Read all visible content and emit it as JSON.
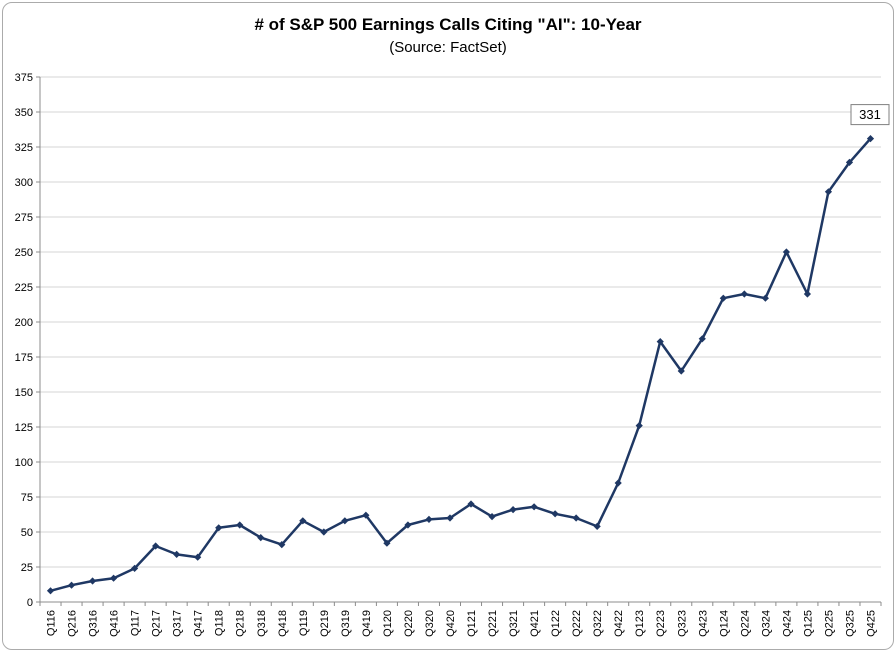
{
  "chart_data": {
    "type": "line",
    "title": "# of S&P 500 Earnings Calls Citing \"AI\": 10-Year",
    "subtitle": "(Source: FactSet)",
    "xlabel": "",
    "ylabel": "",
    "ylim": [
      0,
      375
    ],
    "ytick_step": 25,
    "grid": true,
    "legend": "none",
    "categories": [
      "Q116",
      "Q216",
      "Q316",
      "Q416",
      "Q117",
      "Q217",
      "Q317",
      "Q417",
      "Q118",
      "Q218",
      "Q318",
      "Q418",
      "Q119",
      "Q219",
      "Q319",
      "Q419",
      "Q120",
      "Q220",
      "Q320",
      "Q420",
      "Q121",
      "Q221",
      "Q321",
      "Q421",
      "Q122",
      "Q222",
      "Q322",
      "Q422",
      "Q123",
      "Q223",
      "Q323",
      "Q423",
      "Q124",
      "Q224",
      "Q324",
      "Q424",
      "Q125",
      "Q225",
      "Q325",
      "Q425"
    ],
    "series": [
      {
        "name": "# of S&P 500 Earnings Calls Citing AI",
        "values": [
          8,
          12,
          15,
          17,
          24,
          40,
          34,
          32,
          53,
          55,
          46,
          41,
          58,
          50,
          58,
          62,
          42,
          55,
          59,
          60,
          70,
          61,
          66,
          68,
          63,
          60,
          54,
          85,
          126,
          186,
          165,
          188,
          217,
          220,
          217,
          250,
          220,
          293,
          314,
          331
        ]
      }
    ],
    "last_point_label": "331",
    "colors": {
      "line": "#1f3864",
      "marker": "#1f3864",
      "grid": "#d6d6d6",
      "axis": "#8c8c8c",
      "label_box_border": "#7f7f7f",
      "text": "#000000"
    }
  }
}
